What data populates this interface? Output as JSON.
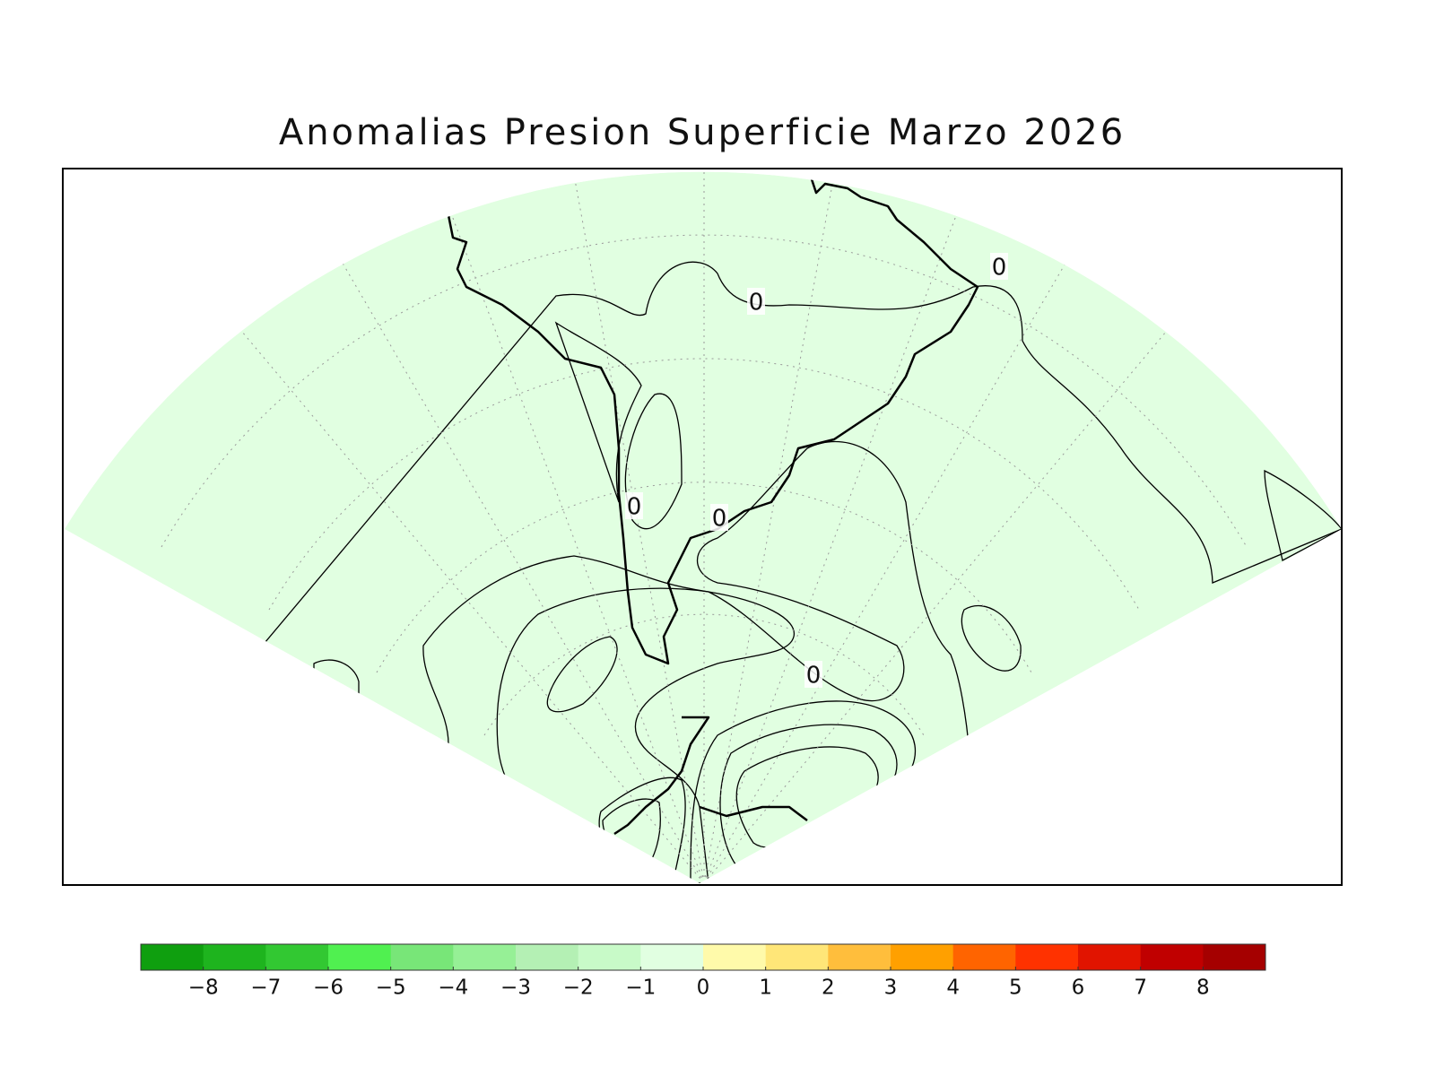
{
  "title": "Anomalias Presion Superficie Marzo 2026",
  "map": {
    "contour_labels": [
      "0",
      "0",
      "0",
      "0",
      "0"
    ]
  },
  "colorbar": {
    "lim": [
      -9,
      9
    ],
    "colors": [
      "#0f9f0f",
      "#1eb41e",
      "#32c832",
      "#50f050",
      "#78e678",
      "#96f096",
      "#b4f0b4",
      "#c8fac8",
      "#e1ffe1",
      "#fffaaa",
      "#ffe678",
      "#ffbe3c",
      "#ffa000",
      "#ff6400",
      "#ff3200",
      "#e11400",
      "#c00000",
      "#a50000"
    ],
    "ticks": [
      {
        "value": -8,
        "label": "−8"
      },
      {
        "value": -7,
        "label": "−7"
      },
      {
        "value": -6,
        "label": "−6"
      },
      {
        "value": -5,
        "label": "−5"
      },
      {
        "value": -4,
        "label": "−4"
      },
      {
        "value": -3,
        "label": "−3"
      },
      {
        "value": -2,
        "label": "−2"
      },
      {
        "value": -1,
        "label": "−1"
      },
      0,
      1,
      2,
      3,
      4,
      5,
      6,
      7,
      8
    ]
  }
}
